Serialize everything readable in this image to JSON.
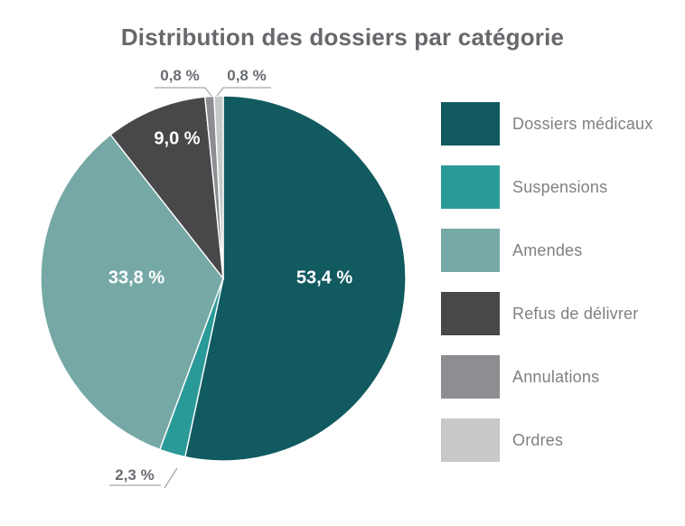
{
  "title": "Distribution des dossiers par catégorie",
  "chart_data": {
    "type": "pie",
    "title": "Distribution des dossiers par catégorie",
    "unit": "%",
    "start_angle_deg": 0,
    "direction": "clockwise",
    "legend_position": "right",
    "slices": [
      {
        "label": "Dossiers médicaux",
        "value": 53.4,
        "display": "53,4 %",
        "color": "#115a60",
        "label_placement": "inside"
      },
      {
        "label": "Suspensions",
        "value": 2.3,
        "display": "2,3 %",
        "color": "#2a9a99",
        "label_placement": "outside"
      },
      {
        "label": "Amendes",
        "value": 33.8,
        "display": "33,8 %",
        "color": "#76a9a6",
        "label_placement": "inside"
      },
      {
        "label": "Refus de délivrer",
        "value": 9.0,
        "display": "9,0 %",
        "color": "#48484a",
        "label_placement": "inside"
      },
      {
        "label": "Annulations",
        "value": 0.8,
        "display": "0,8 %",
        "color": "#8c8e91",
        "label_placement": "outside"
      },
      {
        "label": "Ordres",
        "value": 0.8,
        "display": "0,8 %",
        "color": "#c7c8ca",
        "label_placement": "outside"
      }
    ],
    "label_text_colors": {
      "inside": "#ffffff",
      "outside": "#696c72"
    },
    "leader_line_color": "#a5a7aa",
    "title_color": "#66686c",
    "legend_text_color": "#7e8084",
    "background_color": "#ffffff"
  }
}
